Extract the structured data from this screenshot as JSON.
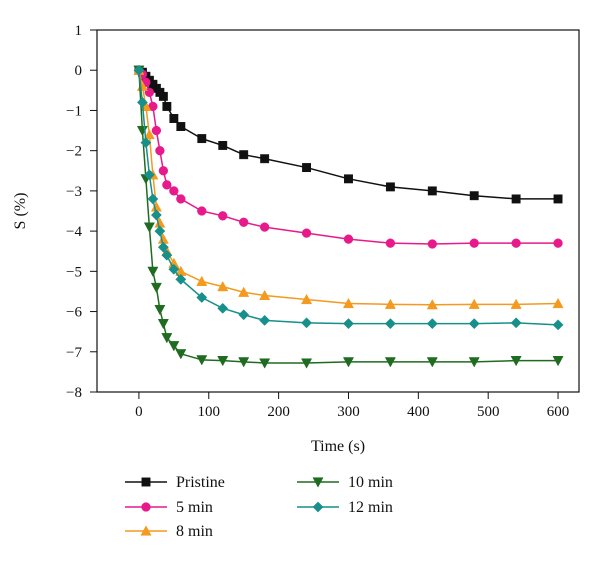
{
  "chart_data": {
    "type": "line",
    "xlabel": "Time (s)",
    "ylabel": "S (%)",
    "xlim": [
      -60,
      630
    ],
    "ylim": [
      -8,
      1
    ],
    "xticks": [
      0,
      100,
      200,
      300,
      400,
      500,
      600
    ],
    "yticks": [
      1,
      0,
      -1,
      -2,
      -3,
      -4,
      -5,
      -6,
      -7,
      -8
    ],
    "xtick_labels": [
      "0",
      "100",
      "200",
      "300",
      "400",
      "500",
      "600"
    ],
    "ytick_labels": [
      "1",
      "0",
      "−1",
      "−2",
      "−3",
      "−4",
      "−5",
      "−6",
      "−7",
      "−8"
    ],
    "grid": false,
    "legend_position": "bottom",
    "series": [
      {
        "name": "Pristine",
        "color": "#111111",
        "marker": "square",
        "x": [
          0,
          5,
          10,
          15,
          20,
          25,
          30,
          35,
          40,
          50,
          60,
          90,
          120,
          150,
          180,
          240,
          300,
          360,
          420,
          480,
          540,
          600
        ],
        "y": [
          0,
          -0.05,
          -0.15,
          -0.25,
          -0.35,
          -0.45,
          -0.55,
          -0.65,
          -0.9,
          -1.2,
          -1.4,
          -1.7,
          -1.87,
          -2.1,
          -2.2,
          -2.42,
          -2.7,
          -2.9,
          -3.0,
          -3.12,
          -3.2,
          -3.2
        ]
      },
      {
        "name": "5 min",
        "color": "#e8198b",
        "marker": "circle",
        "x": [
          0,
          5,
          10,
          15,
          20,
          25,
          30,
          35,
          40,
          50,
          60,
          90,
          120,
          150,
          180,
          240,
          300,
          360,
          420,
          480,
          540,
          600
        ],
        "y": [
          0,
          -0.1,
          -0.3,
          -0.55,
          -0.9,
          -1.5,
          -2.0,
          -2.5,
          -2.85,
          -3.0,
          -3.2,
          -3.5,
          -3.62,
          -3.78,
          -3.9,
          -4.05,
          -4.2,
          -4.3,
          -4.32,
          -4.3,
          -4.3,
          -4.3
        ]
      },
      {
        "name": "8 min",
        "color": "#f39a1f",
        "marker": "triangle-up",
        "x": [
          0,
          5,
          10,
          15,
          20,
          25,
          30,
          35,
          40,
          50,
          60,
          90,
          120,
          150,
          180,
          240,
          300,
          360,
          420,
          480,
          540,
          600
        ],
        "y": [
          0,
          -0.4,
          -0.9,
          -1.6,
          -2.6,
          -3.4,
          -3.8,
          -4.2,
          -4.5,
          -4.8,
          -5.0,
          -5.25,
          -5.38,
          -5.52,
          -5.6,
          -5.7,
          -5.8,
          -5.82,
          -5.83,
          -5.82,
          -5.82,
          -5.8
        ]
      },
      {
        "name": "10 min",
        "color": "#1f6b20",
        "marker": "triangle-down",
        "x": [
          0,
          5,
          10,
          15,
          20,
          25,
          30,
          35,
          40,
          50,
          60,
          90,
          120,
          150,
          180,
          240,
          300,
          360,
          420,
          480,
          540,
          600
        ],
        "y": [
          0,
          -1.5,
          -2.7,
          -3.9,
          -5.0,
          -5.4,
          -5.95,
          -6.3,
          -6.65,
          -6.85,
          -7.05,
          -7.2,
          -7.22,
          -7.25,
          -7.28,
          -7.28,
          -7.25,
          -7.25,
          -7.25,
          -7.25,
          -7.22,
          -7.22
        ]
      },
      {
        "name": "12 min",
        "color": "#178f8a",
        "marker": "diamond",
        "x": [
          0,
          5,
          10,
          15,
          20,
          25,
          30,
          35,
          40,
          50,
          60,
          90,
          120,
          150,
          180,
          240,
          300,
          360,
          420,
          480,
          540,
          600
        ],
        "y": [
          0,
          -0.8,
          -1.8,
          -2.6,
          -3.2,
          -3.6,
          -4.0,
          -4.4,
          -4.6,
          -4.95,
          -5.2,
          -5.65,
          -5.92,
          -6.08,
          -6.22,
          -6.28,
          -6.3,
          -6.3,
          -6.3,
          -6.3,
          -6.28,
          -6.33
        ]
      }
    ]
  }
}
